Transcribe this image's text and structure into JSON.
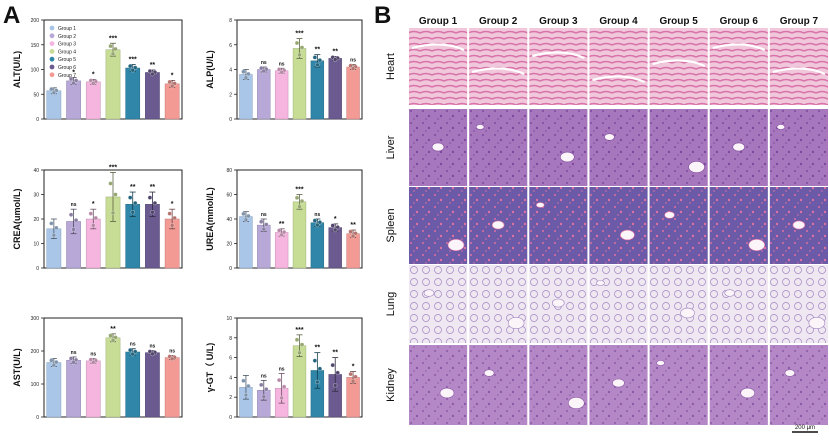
{
  "panels": {
    "a_label": "A",
    "b_label": "B"
  },
  "group_colors": [
    "#a9c6e8",
    "#b7a8d8",
    "#f5b5df",
    "#c7dd95",
    "#2f86a8",
    "#6a5a8f",
    "#f39a94"
  ],
  "chart_data": [
    {
      "type": "bar",
      "title": "",
      "xlabel": "",
      "ylabel": "ALT(U/L)",
      "ylim": [
        0,
        200
      ],
      "yticks": [
        0,
        50,
        100,
        150,
        200
      ],
      "legend": [
        "Group 1",
        "Group 2",
        "Group 3",
        "Group 4",
        "Group 5",
        "Group 6",
        "Group 7"
      ],
      "legend_position": "top-left",
      "values": [
        57,
        77,
        75,
        140,
        103,
        94,
        71
      ],
      "errors": [
        6,
        7,
        5,
        13,
        7,
        5,
        7
      ],
      "significance": [
        "",
        "*",
        "*",
        "***",
        "***",
        "**",
        "*"
      ]
    },
    {
      "type": "bar",
      "title": "",
      "xlabel": "",
      "ylabel": "ALP(U/L)",
      "ylim": [
        0,
        8
      ],
      "yticks": [
        0,
        2,
        4,
        6,
        8
      ],
      "values": [
        3.6,
        4.0,
        3.9,
        5.7,
        4.7,
        4.9,
        4.2
      ],
      "errors": [
        0.4,
        0.2,
        0.2,
        0.8,
        0.5,
        0.15,
        0.2
      ],
      "significance": [
        "",
        "ns",
        "ns",
        "***",
        "**",
        "**",
        "ns"
      ]
    },
    {
      "type": "bar",
      "title": "",
      "xlabel": "",
      "ylabel": "CREA(umol/L)",
      "ylim": [
        0,
        40
      ],
      "yticks": [
        0,
        10,
        20,
        30,
        40
      ],
      "values": [
        16,
        19,
        20,
        29,
        26,
        26,
        20
      ],
      "errors": [
        4,
        5,
        4,
        10,
        5,
        5,
        4
      ],
      "significance": [
        "",
        "ns",
        "*",
        "***",
        "**",
        "**",
        "*"
      ]
    },
    {
      "type": "bar",
      "title": "",
      "xlabel": "",
      "ylabel": "UREA(mmol/L)",
      "ylim": [
        0,
        80
      ],
      "yticks": [
        0,
        20,
        40,
        60,
        80
      ],
      "values": [
        42,
        35,
        29,
        54,
        37,
        33,
        28
      ],
      "errors": [
        4,
        5,
        3,
        6,
        3,
        3,
        3
      ],
      "significance": [
        "",
        "ns",
        "**",
        "***",
        "ns",
        "*",
        "**"
      ]
    },
    {
      "type": "bar",
      "title": "",
      "xlabel": "",
      "ylabel": "AST(U/L)",
      "ylim": [
        0,
        300
      ],
      "yticks": [
        0,
        100,
        200,
        300
      ],
      "values": [
        165,
        172,
        170,
        240,
        197,
        195,
        180
      ],
      "errors": [
        12,
        10,
        7,
        12,
        10,
        6,
        6
      ],
      "significance": [
        "",
        "ns",
        "ns",
        "**",
        "ns",
        "ns",
        "ns"
      ]
    },
    {
      "type": "bar",
      "title": "",
      "xlabel": "",
      "ylabel": "γ-GT（ U/L)",
      "ylim": [
        0,
        10
      ],
      "yticks": [
        0,
        2,
        4,
        6,
        8,
        10
      ],
      "values": [
        3.0,
        2.7,
        2.9,
        7.2,
        4.7,
        4.3,
        4.0
      ],
      "errors": [
        1.2,
        1.0,
        1.5,
        1.1,
        1.8,
        1.7,
        0.6
      ],
      "significance": [
        "",
        "ns",
        "ns",
        "***",
        "**",
        "**",
        "*"
      ]
    }
  ],
  "histology": {
    "groups": [
      "Group 1",
      "Group 2",
      "Group 3",
      "Group 4",
      "Group 5",
      "Group 6",
      "Group 7"
    ],
    "tissues": [
      {
        "name": "Heart",
        "base": "#f1c7dc",
        "accent": "#d874a8"
      },
      {
        "name": "Liver",
        "base": "#a777bd",
        "accent": "#7f4a9e"
      },
      {
        "name": "Spleen",
        "base": "#6a5aa8",
        "accent": "#e06fa1"
      },
      {
        "name": "Lung",
        "base": "#efe7f1",
        "accent": "#9f86c1"
      },
      {
        "name": "Kidney",
        "base": "#b488c6",
        "accent": "#8d5aa7"
      }
    ],
    "scale_bar": "200 μm"
  }
}
